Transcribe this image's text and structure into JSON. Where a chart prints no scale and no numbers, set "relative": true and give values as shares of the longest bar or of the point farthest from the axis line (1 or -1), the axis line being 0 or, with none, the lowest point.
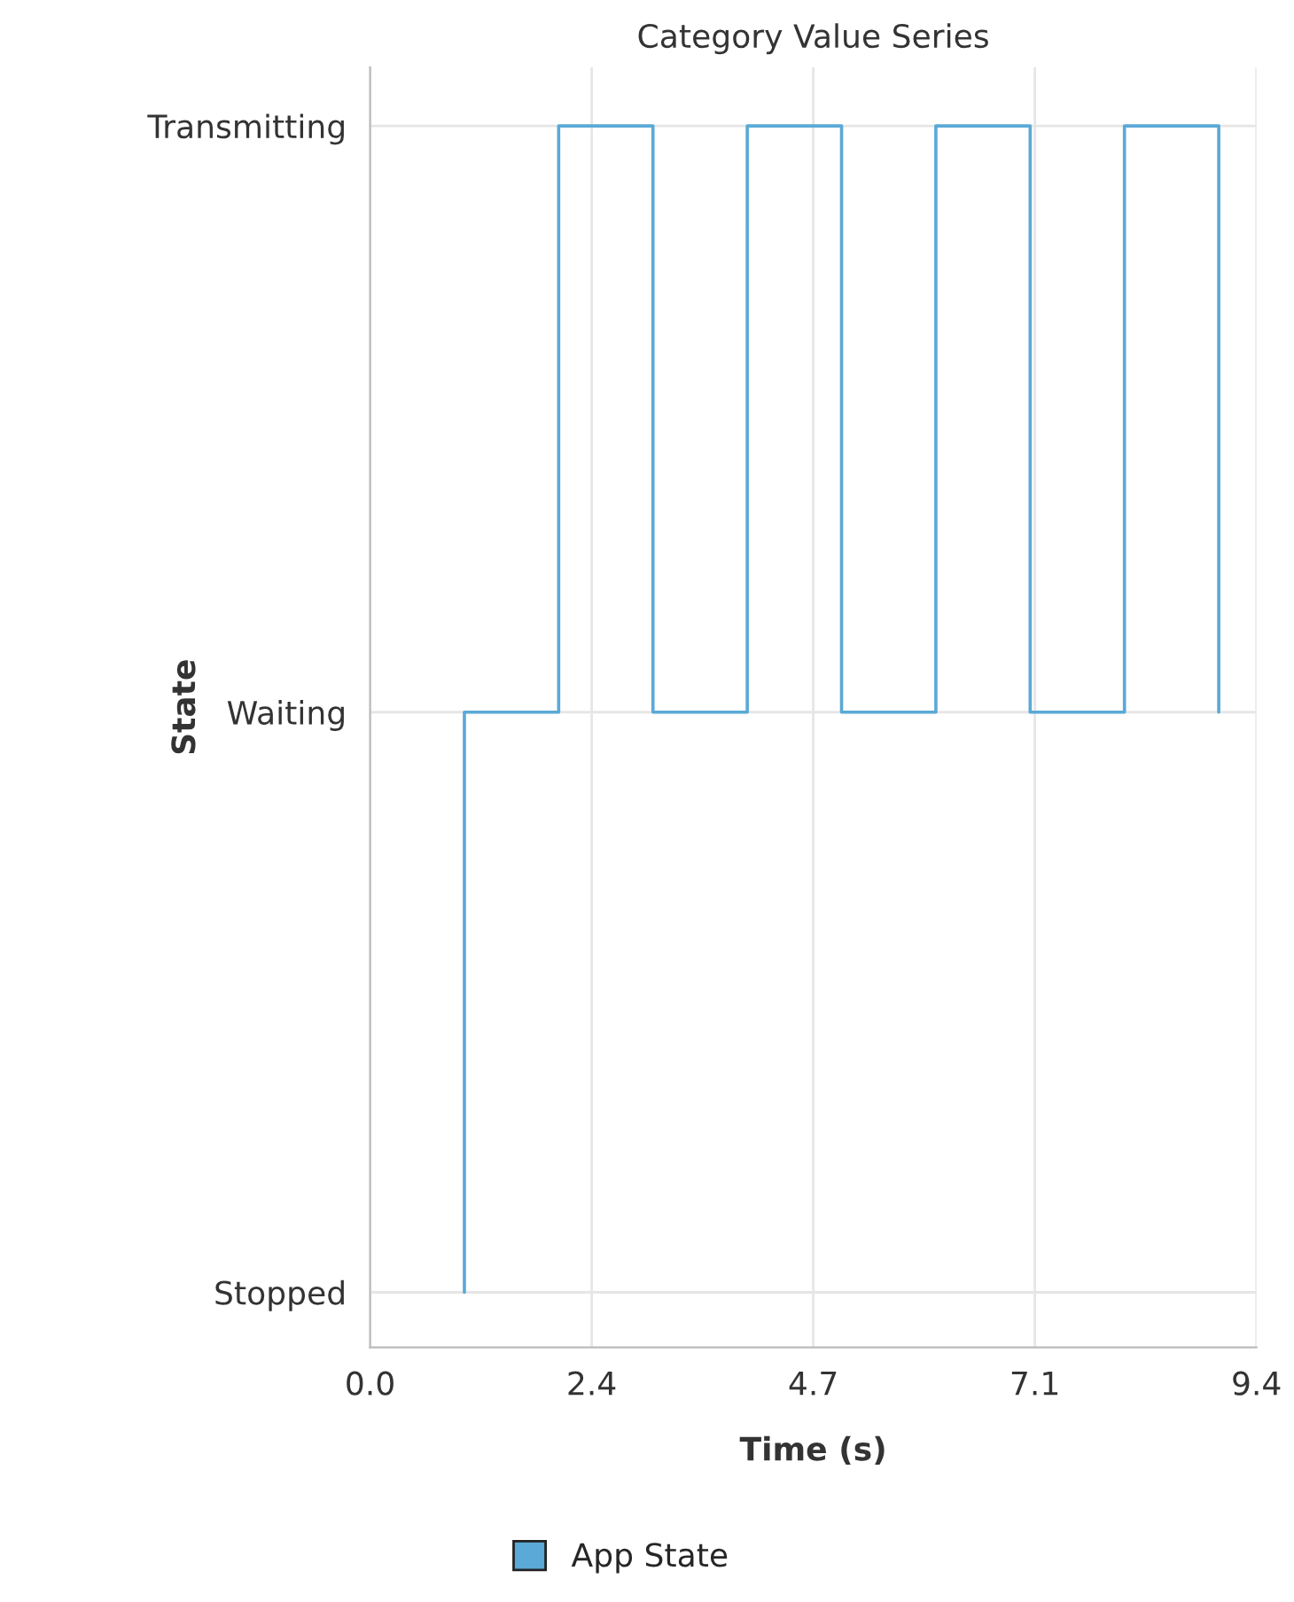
{
  "chart_data": {
    "type": "step",
    "title": "Category Value Series",
    "xlabel": "Time (s)",
    "ylabel": "State",
    "x": [
      1,
      1,
      2,
      3,
      4,
      5,
      6,
      7,
      8,
      9
    ],
    "series": [
      {
        "name": "App State",
        "color": "#5aa9d6",
        "values": [
          0.045,
          0.52,
          1,
          0.52,
          1,
          0.52,
          1,
          0.52,
          1,
          0.52
        ]
      }
    ],
    "relative": true,
    "xlim": [
      0,
      9.4
    ],
    "xticks": [
      {
        "value": 0,
        "label": "0.0"
      },
      {
        "value": 2.35,
        "label": "2.4"
      },
      {
        "value": 4.7,
        "label": "4.7"
      },
      {
        "value": 7.05,
        "label": "7.1"
      },
      {
        "value": 9.4,
        "label": "9.4"
      }
    ],
    "y_categories": [
      "Transmitting",
      "Waiting",
      "Stopped"
    ],
    "grid": true,
    "legend": "bottom",
    "marker": "none",
    "line_style": "solid"
  }
}
